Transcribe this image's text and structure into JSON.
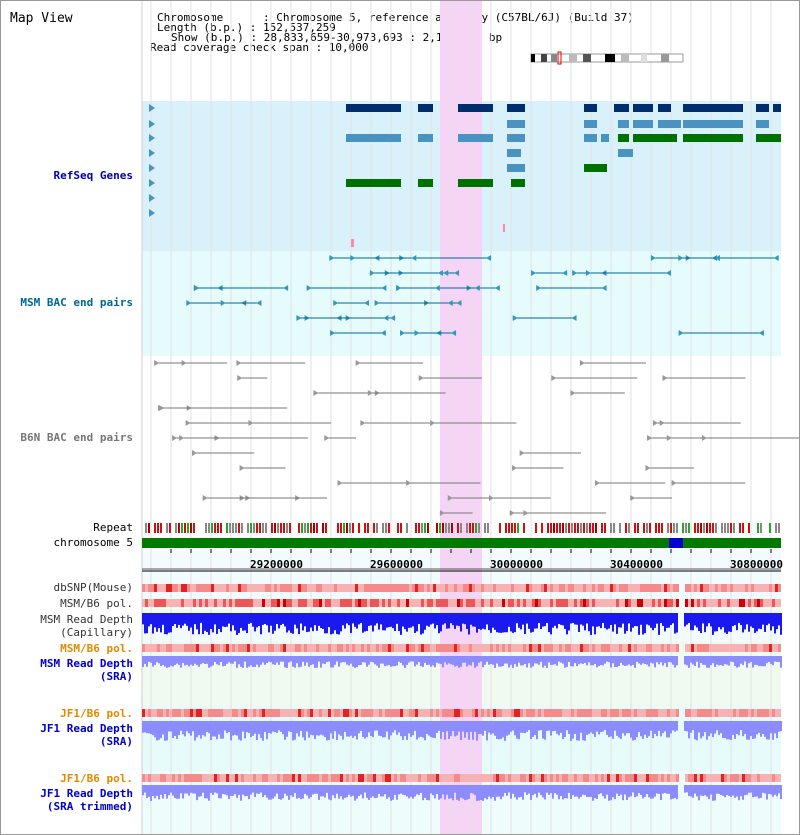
{
  "view": {
    "title": "Map View",
    "info_lines": [
      "Chromosome      : Chromosome 5, reference assembly (C57BL/6J) (Build 37)",
      "Length (b.p.) : 152,537,259",
      "Show (b.p.) : 28,833,659-30,973,693 : 2,140,035 bp",
      "Read coverage check span : 10,000"
    ]
  },
  "tracks": {
    "refseq": {
      "label": "RefSeq Genes",
      "color": "#0000aa"
    },
    "msm_bac": {
      "label": "MSM BAC end pairs",
      "color": "#006699"
    },
    "b6n_bac": {
      "label": "B6N BAC end pairs",
      "color": "#777777"
    },
    "repeat": {
      "label": "Repeat"
    },
    "chromosome": {
      "label": "chromosome 5"
    },
    "dbsnp": {
      "label": "dbSNP(Mouse)"
    },
    "msm_b6_pol": {
      "label": "MSM/B6 pol."
    },
    "msm_depth_cap": {
      "label_1": "MSM Read Depth",
      "label_2": "(Capillary)"
    },
    "msm_b6_pol_sra": {
      "label": "MSM/B6 pol.",
      "color": "#e08a00"
    },
    "msm_depth_sra": {
      "label_1": "MSM Read Depth",
      "label_2": "(SRA)",
      "color": "#0000cc"
    },
    "jf1_b6_pol": {
      "label": "JF1/B6 pol.",
      "color": "#e08a00"
    },
    "jf1_depth_sra": {
      "label_1": "JF1 Read Depth",
      "label_2": "(SRA)",
      "color": "#0000cc"
    },
    "jf1_b6_pol_2": {
      "label": "JF1/B6 pol.",
      "color": "#e08a00"
    },
    "jf1_depth_trim": {
      "label_1": "JF1 Read Depth",
      "label_2": "(SRA trimmed)",
      "color": "#0000cc"
    }
  },
  "axis": {
    "ticks": [
      "29200000",
      "29600000",
      "30000000",
      "30400000",
      "30800000"
    ]
  },
  "colors": {
    "highlight": "#f6d4f6",
    "refseq_bg": "#d9f1fb",
    "msm_bg": "#e6fbfb",
    "chrom_green": "#007a00",
    "gene_dark": "#002d6b",
    "gene_mid": "#4a92c0",
    "gene_green": "#007000",
    "depth_blue": "#1a1aee",
    "depth_light": "#8c8cff"
  }
}
